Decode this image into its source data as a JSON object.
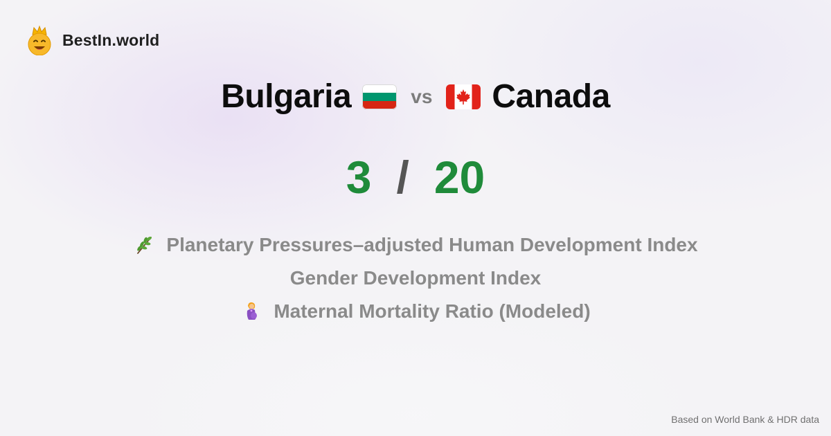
{
  "brand": {
    "name": "BestIn.world",
    "logo_icon": "crowned-smiley-icon"
  },
  "comparison": {
    "country_a": {
      "name": "Bulgaria",
      "flag_icon": "bulgaria-flag-icon"
    },
    "vs_label": "vs",
    "country_b": {
      "name": "Canada",
      "flag_icon": "canada-flag-icon"
    }
  },
  "score": {
    "a": "3",
    "separator": "/",
    "b": "20"
  },
  "metrics": [
    {
      "label": "Planetary Pressures–adjusted Human Development Index",
      "icon": "herb-icon"
    },
    {
      "label": "Gender Development Index",
      "icon": ""
    },
    {
      "label": "Maternal Mortality Ratio (Modeled)",
      "icon": "pregnant-woman-icon"
    }
  ],
  "footnote": "Based on World Bank & HDR data",
  "colors": {
    "score": "#1f8b3a",
    "metric_text": "#8a8a8a",
    "background": "#f4f3f6"
  }
}
